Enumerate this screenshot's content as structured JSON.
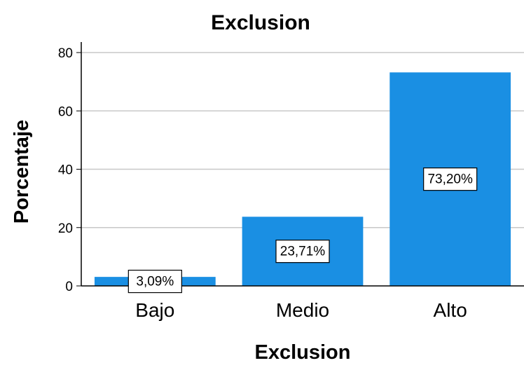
{
  "chart_data": {
    "type": "bar",
    "title": "Exclusion",
    "xlabel": "Exclusion",
    "ylabel": "Porcentaje",
    "categories": [
      "Bajo",
      "Medio",
      "Alto"
    ],
    "values": [
      3.09,
      23.71,
      73.2
    ],
    "data_labels": [
      "3,09%",
      "23,71%",
      "73,20%"
    ],
    "ylim": [
      0,
      80
    ],
    "yticks": [
      0,
      20,
      40,
      60,
      80
    ],
    "ytick_labels": [
      "0",
      "20",
      "40",
      "60",
      "80"
    ],
    "grid": true,
    "bar_color": "#1a8fe3"
  }
}
